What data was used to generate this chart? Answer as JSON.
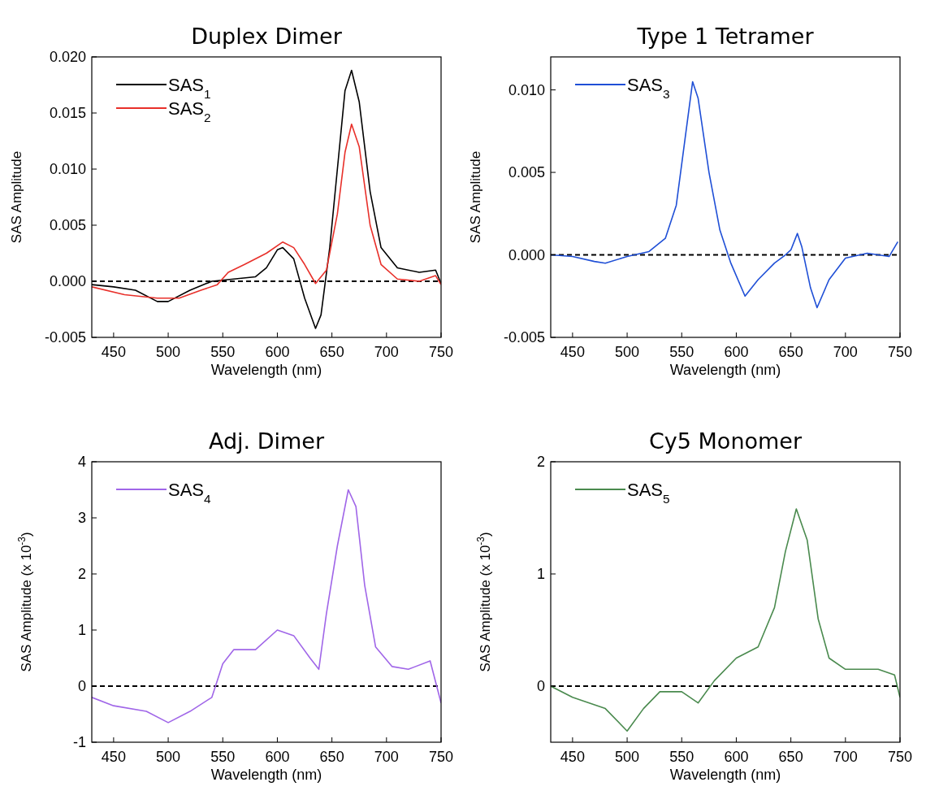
{
  "chart_data": [
    {
      "type": "line",
      "title": "Duplex  Dimer",
      "xlabel": "Wavelength (nm)",
      "ylabel": "SAS Amplitude",
      "xlim": [
        430,
        750
      ],
      "xticks": [
        450,
        500,
        550,
        600,
        650,
        700,
        750
      ],
      "ylim": [
        -0.005,
        0.02
      ],
      "yticks": [
        {
          "value": -0.005,
          "label": "-0.005"
        },
        {
          "value": 0,
          "label": "0.000"
        },
        {
          "value": 0.005,
          "label": "0.005"
        },
        {
          "value": 0.01,
          "label": "0.010"
        },
        {
          "value": 0.015,
          "label": "0.015"
        },
        {
          "value": 0.02,
          "label": "0.020"
        }
      ],
      "legend": "top left",
      "ref_lines": [
        {
          "axis": "y",
          "value": 0,
          "color": "#000000",
          "line_style": "dashed"
        }
      ],
      "series": [
        {
          "name": "SAS$_{1}$",
          "color": "#000000",
          "x": [
            430,
            450,
            470,
            490,
            500,
            520,
            540,
            560,
            580,
            590,
            600,
            605,
            615,
            625,
            635,
            640,
            648,
            655,
            662,
            668,
            675,
            685,
            695,
            710,
            730,
            745,
            750
          ],
          "values": [
            -0.0003,
            -0.0005,
            -0.0008,
            -0.0018,
            -0.0018,
            -0.0008,
            0.0,
            0.0002,
            0.0004,
            0.0012,
            0.0028,
            0.003,
            0.002,
            -0.0015,
            -0.0042,
            -0.003,
            0.003,
            0.01,
            0.017,
            0.0188,
            0.016,
            0.008,
            0.003,
            0.0012,
            0.0008,
            0.001,
            -0.0002
          ]
        },
        {
          "name": "SAS$_{2}$",
          "color": "#e8302a",
          "x": [
            430,
            460,
            490,
            510,
            530,
            545,
            555,
            570,
            590,
            605,
            615,
            625,
            635,
            645,
            655,
            662,
            668,
            675,
            685,
            695,
            710,
            730,
            745,
            750
          ],
          "values": [
            -0.0005,
            -0.0012,
            -0.0015,
            -0.0015,
            -0.0008,
            -0.0003,
            0.0008,
            0.0015,
            0.0025,
            0.0035,
            0.003,
            0.0015,
            -0.0002,
            0.001,
            0.006,
            0.0115,
            0.014,
            0.012,
            0.005,
            0.0015,
            0.0002,
            0.0,
            0.0005,
            -0.0003
          ]
        }
      ]
    },
    {
      "type": "line",
      "title": "Type 1 Tetramer",
      "xlabel": "Wavelength (nm)",
      "ylabel": "SAS Amplitude",
      "xlim": [
        430,
        750
      ],
      "xticks": [
        450,
        500,
        550,
        600,
        650,
        700,
        750
      ],
      "ylim": [
        -0.005,
        0.012
      ],
      "yticks": [
        {
          "value": -0.005,
          "label": "-0.005"
        },
        {
          "value": 0,
          "label": "0.000"
        },
        {
          "value": 0.005,
          "label": "0.005"
        },
        {
          "value": 0.01,
          "label": "0.010"
        }
      ],
      "legend": "top left",
      "ref_lines": [
        {
          "axis": "y",
          "value": 0,
          "color": "#000000",
          "line_style": "dashed"
        }
      ],
      "series": [
        {
          "name": "SAS$_{3}$",
          "color": "#1f4fd6",
          "x": [
            430,
            450,
            470,
            480,
            500,
            520,
            535,
            545,
            553,
            560,
            565,
            575,
            585,
            595,
            608,
            620,
            635,
            645,
            650,
            656,
            660,
            668,
            674,
            685,
            700,
            720,
            740,
            748
          ],
          "values": [
            0.0,
            -0.0001,
            -0.0004,
            -0.0005,
            -0.0001,
            0.0002,
            0.001,
            0.003,
            0.007,
            0.0105,
            0.0095,
            0.005,
            0.0015,
            -0.0005,
            -0.0025,
            -0.0015,
            -0.0005,
            0.0,
            0.0003,
            0.0013,
            0.0005,
            -0.002,
            -0.0032,
            -0.0015,
            -0.0002,
            0.0001,
            -0.0001,
            0.0008
          ]
        }
      ]
    },
    {
      "type": "line",
      "title": "Adj. Dimer",
      "xlabel": "Wavelength (nm)",
      "ylabel": "SAS Amplitude (x 10$^{-3}$)",
      "xlim": [
        430,
        750
      ],
      "xticks": [
        450,
        500,
        550,
        600,
        650,
        700,
        750
      ],
      "ylim": [
        -1,
        4
      ],
      "yticks": [
        -1,
        0,
        1,
        2,
        3,
        4
      ],
      "legend": "top left",
      "ref_lines": [
        {
          "axis": "y",
          "value": 0,
          "color": "#000000",
          "line_style": "dashed"
        }
      ],
      "series": [
        {
          "name": "SAS$_{4}$",
          "color": "#a066e8",
          "x": [
            430,
            450,
            480,
            500,
            520,
            540,
            550,
            560,
            580,
            600,
            615,
            630,
            638,
            645,
            655,
            665,
            672,
            680,
            690,
            705,
            720,
            740,
            750
          ],
          "values": [
            -0.2,
            -0.35,
            -0.45,
            -0.65,
            -0.45,
            -0.2,
            0.4,
            0.65,
            0.65,
            1.0,
            0.9,
            0.5,
            0.3,
            1.3,
            2.5,
            3.5,
            3.2,
            1.8,
            0.7,
            0.35,
            0.3,
            0.45,
            -0.3
          ]
        }
      ]
    },
    {
      "type": "line",
      "title": "Cy5 Monomer",
      "xlabel": "Wavelength (nm)",
      "ylabel": "SAS Amplitude (x 10$^{-3}$)",
      "xlim": [
        430,
        750
      ],
      "xticks": [
        450,
        500,
        550,
        600,
        650,
        700,
        750
      ],
      "ylim": [
        -0.5,
        2
      ],
      "yticks": [
        0,
        1,
        2
      ],
      "legend": "top left",
      "ref_lines": [
        {
          "axis": "y",
          "value": 0,
          "color": "#000000",
          "line_style": "dashed"
        }
      ],
      "series": [
        {
          "name": "SAS$_{5}$",
          "color": "#4a8a4e",
          "x": [
            430,
            450,
            480,
            500,
            515,
            530,
            550,
            565,
            580,
            600,
            620,
            635,
            645,
            655,
            665,
            675,
            685,
            700,
            730,
            745,
            750
          ],
          "values": [
            0.0,
            -0.1,
            -0.2,
            -0.4,
            -0.2,
            -0.05,
            -0.05,
            -0.15,
            0.05,
            0.25,
            0.35,
            0.7,
            1.2,
            1.58,
            1.3,
            0.6,
            0.25,
            0.15,
            0.15,
            0.1,
            -0.1
          ]
        }
      ]
    }
  ]
}
